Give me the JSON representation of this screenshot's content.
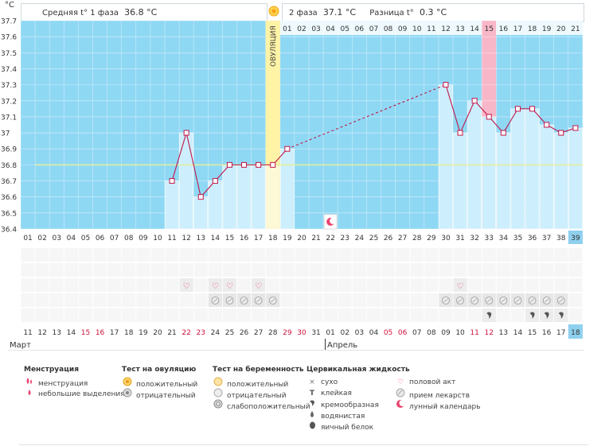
{
  "header": {
    "unit": "°C",
    "phase1_label": "Средняя t° 1 фаза",
    "phase1_value": "36.8 °C",
    "phase2_label": "2 фаза",
    "phase2_value": "37.1 °C",
    "diff_label": "Разница t°",
    "diff_value": "0.3 °C"
  },
  "colors": {
    "sky": "#8fd8f4",
    "bar": "#cdeefc",
    "line": "#c0174a",
    "ovulation": "#fff3a6",
    "pink": "#f8b7c8",
    "coverline": "#e6ef9a",
    "todayBlue": "#8fd0ee"
  },
  "ovulation_label": "ОВУЛЯЦИЯ",
  "months": {
    "march": "Март",
    "april": "Апрель"
  },
  "chart_data": {
    "type": "line",
    "title": "",
    "ylabel": "°C",
    "ylim": [
      36.4,
      37.7
    ],
    "yticks": [
      "37.7",
      "37.6",
      "37.5",
      "37.4",
      "37.3",
      "37.2",
      "37.1",
      "37",
      "36.9",
      "36.8",
      "36.7",
      "36.6",
      "36.5",
      "36.4"
    ],
    "cycle_days": [
      "01",
      "02",
      "03",
      "04",
      "05",
      "06",
      "07",
      "08",
      "09",
      "10",
      "11",
      "12",
      "13",
      "14",
      "15",
      "16",
      "17",
      "18",
      "19",
      "20",
      "21",
      "22",
      "23",
      "24",
      "25",
      "26",
      "27",
      "28",
      "29",
      "30",
      "31",
      "32",
      "33",
      "34",
      "35",
      "36",
      "37",
      "38",
      "39"
    ],
    "calendar_dates": [
      "11",
      "12",
      "13",
      "14",
      "15",
      "16",
      "17",
      "18",
      "19",
      "20",
      "21",
      "22",
      "23",
      "24",
      "25",
      "26",
      "27",
      "28",
      "29",
      "30",
      "31",
      "01",
      "02",
      "03",
      "04",
      "05",
      "06",
      "07",
      "08",
      "09",
      "10",
      "11",
      "12",
      "13",
      "14",
      "15",
      "16",
      "17",
      "18"
    ],
    "red_dates": [
      5,
      6,
      12,
      13,
      19,
      20,
      26,
      27,
      32,
      33
    ],
    "top_labels": [
      "01",
      "02",
      "03",
      "04",
      "05",
      "06",
      "07",
      "08",
      "09",
      "10",
      "11",
      "12",
      "13",
      "14",
      "15",
      "16",
      "17",
      "18",
      "19",
      "20",
      "21"
    ],
    "temperatures": [
      {
        "day": 11,
        "value": 36.7
      },
      {
        "day": 12,
        "value": 37.0
      },
      {
        "day": 13,
        "value": 36.6
      },
      {
        "day": 14,
        "value": 36.7
      },
      {
        "day": 15,
        "value": 36.8
      },
      {
        "day": 16,
        "value": 36.8
      },
      {
        "day": 17,
        "value": 36.8
      },
      {
        "day": 18,
        "value": 36.8
      },
      {
        "day": 19,
        "value": 36.9
      },
      {
        "day": 30,
        "value": 37.3
      },
      {
        "day": 31,
        "value": 37.0
      },
      {
        "day": 32,
        "value": 37.2
      },
      {
        "day": 33,
        "value": 37.1
      },
      {
        "day": 34,
        "value": 37.0
      },
      {
        "day": 35,
        "value": 37.15
      },
      {
        "day": 36,
        "value": 37.15
      },
      {
        "day": 37,
        "value": 37.05
      },
      {
        "day": 38,
        "value": 37.0
      },
      {
        "day": 39,
        "value": 37.03
      }
    ],
    "coverline": 36.8,
    "ovulation_day": 18,
    "highlight_day": 33,
    "today_day": 39,
    "moon_day": 22,
    "intercourse_days": [
      12,
      14,
      15,
      17,
      31
    ],
    "medication_days": [
      14,
      15,
      16,
      17,
      18,
      30,
      31,
      32,
      33,
      34,
      35,
      36,
      37,
      38
    ],
    "cervical_days": [
      33,
      36,
      37,
      38
    ]
  },
  "legend": {
    "menstruation": {
      "title": "Менструация",
      "items": [
        "менструация",
        "небольшие выделения"
      ]
    },
    "ovulation_test": {
      "title": "Тест на овуляцию",
      "items": [
        "положительный",
        "отрицательный"
      ]
    },
    "pregnancy_test": {
      "title": "Тест на беременность",
      "items": [
        "положительный",
        "отрицательный",
        "слабоположительный"
      ]
    },
    "cervical_fluid": {
      "title": "Цервикальная жидкость",
      "items": [
        "сухо",
        "клейкая",
        "кремообразная",
        "водянистая",
        "яичный белок"
      ]
    },
    "other": {
      "items": [
        "половой акт",
        "прием лекарств",
        "лунный календарь"
      ]
    }
  }
}
